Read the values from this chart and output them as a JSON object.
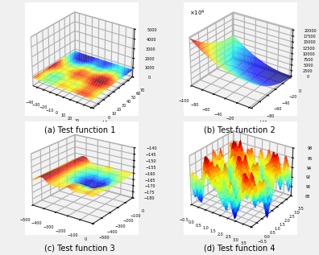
{
  "subtitles": [
    "(a) Test function 1",
    "(b) Test function 2",
    "(c) Test function 3",
    "(d) Test function 4"
  ],
  "subtitle_fontsize": 7,
  "background_color": "#f0f0f0",
  "pane_color": [
    0.9,
    0.9,
    0.9,
    0.5
  ],
  "f1": {
    "xlim": [
      -47,
      42
    ],
    "ylim": [
      -10,
      70
    ],
    "zticks": [
      0,
      1000,
      2000,
      3000,
      4000,
      5000
    ],
    "elev": 28,
    "azim": -55
  },
  "f2": {
    "xlim": [
      -100,
      3
    ],
    "ylim": [
      -100,
      3
    ],
    "elev": 28,
    "azim": -55,
    "scale_label": "x10^4"
  },
  "f3": {
    "xlim": [
      -500,
      0
    ],
    "ylim": [
      -500,
      0
    ],
    "zlim": [
      -180,
      -140
    ],
    "elev": 22,
    "azim": -55
  },
  "f4": {
    "xlim": [
      -0.5,
      3.5
    ],
    "ylim": [
      -0.5,
      3.5
    ],
    "zlim": [
      88,
      98
    ],
    "elev": 28,
    "azim": -55
  }
}
